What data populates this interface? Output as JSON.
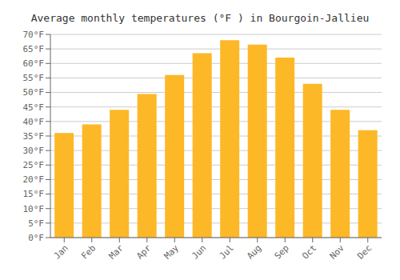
{
  "chart_data": {
    "type": "bar",
    "title": "Average monthly temperatures (°F ) in Bourgoin-Jallieu",
    "categories": [
      "Jan",
      "Feb",
      "Mar",
      "Apr",
      "May",
      "Jun",
      "Jul",
      "Aug",
      "Sep",
      "Oct",
      "Nov",
      "Dec"
    ],
    "values": [
      36,
      39,
      44,
      49.5,
      56,
      63.5,
      68,
      66.5,
      62,
      53,
      44,
      37
    ],
    "color": "#FDB827",
    "ylim": [
      0,
      70
    ],
    "yticks": [
      {
        "value": 0,
        "label": "0°F"
      },
      {
        "value": 5,
        "label": "5°F"
      },
      {
        "value": 10,
        "label": "10°F"
      },
      {
        "value": 15,
        "label": "15°F"
      },
      {
        "value": 20,
        "label": "20°F"
      },
      {
        "value": 25,
        "label": "25°F"
      },
      {
        "value": 30,
        "label": "30°F"
      },
      {
        "value": 35,
        "label": "35°F"
      },
      {
        "value": 40,
        "label": "40°F"
      },
      {
        "value": 45,
        "label": "45°F"
      },
      {
        "value": 50,
        "label": "50°F"
      },
      {
        "value": 55,
        "label": "55°F"
      },
      {
        "value": 60,
        "label": "60°F"
      },
      {
        "value": 65,
        "label": "65°F"
      },
      {
        "value": 70,
        "label": "70°F"
      }
    ],
    "grid": true
  }
}
